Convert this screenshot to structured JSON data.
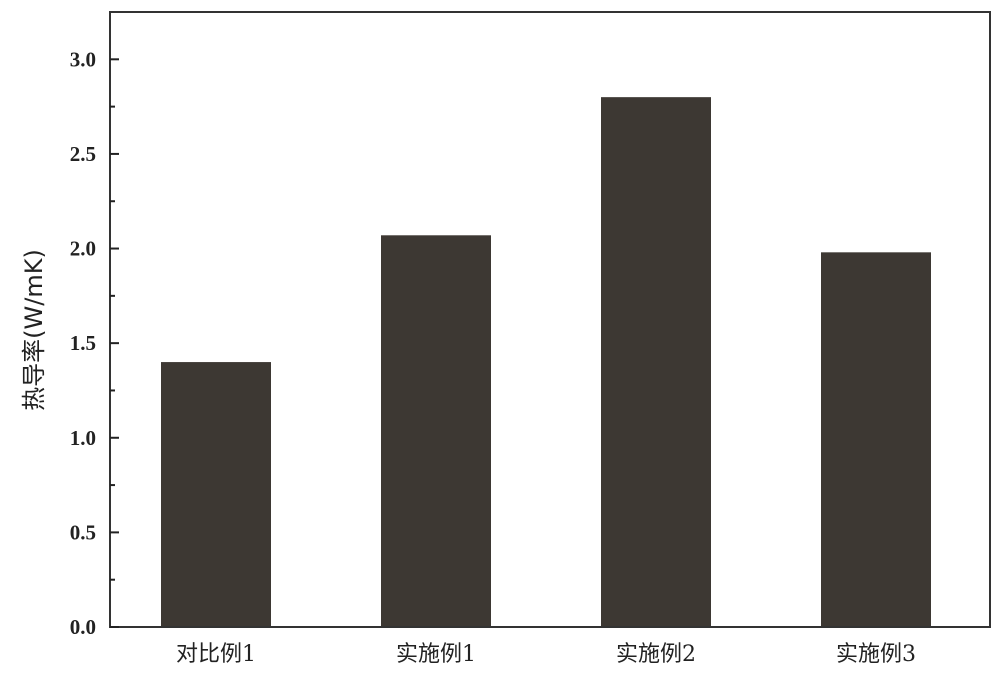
{
  "chart_data": {
    "type": "bar",
    "title": "",
    "xlabel": "",
    "ylabel": "热导率(W/mK)",
    "categories": [
      "对比例1",
      "实施例1",
      "实施例2",
      "实施例3"
    ],
    "values": [
      1.4,
      2.07,
      2.8,
      1.98
    ],
    "ylim": [
      0,
      3.25
    ],
    "yticks": [
      "0.0",
      "0.5",
      "1.0",
      "1.5",
      "2.0",
      "2.5",
      "3.0"
    ],
    "minor_tick_step": 0.25,
    "grid": false,
    "legend": "none",
    "bar_color": "#3d3833"
  }
}
